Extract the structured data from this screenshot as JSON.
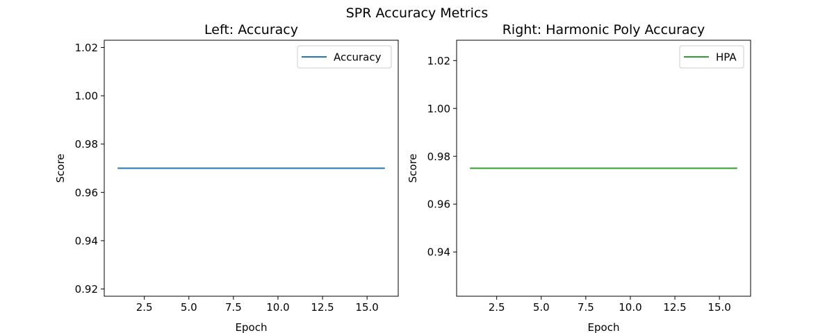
{
  "figure": {
    "suptitle": "SPR Accuracy Metrics"
  },
  "chart_data": [
    {
      "type": "line",
      "title": "Left: Accuracy",
      "xlabel": "Epoch",
      "ylabel": "Score",
      "xlim": [
        0.25,
        16.75
      ],
      "ylim": [
        0.917,
        1.023
      ],
      "xticks": [
        2.5,
        5.0,
        7.5,
        10.0,
        12.5,
        15.0
      ],
      "xtick_labels": [
        "2.5",
        "5.0",
        "7.5",
        "10.0",
        "12.5",
        "15.0"
      ],
      "yticks": [
        0.92,
        0.94,
        0.96,
        0.98,
        1.0,
        1.02
      ],
      "ytick_labels": [
        "0.92",
        "0.94",
        "0.96",
        "0.98",
        "1.00",
        "1.02"
      ],
      "grid": false,
      "legend_position": "top-right",
      "series": [
        {
          "name": "Accuracy",
          "color": "#1f77b4",
          "x": [
            1,
            16
          ],
          "y": [
            0.97,
            0.97
          ]
        }
      ]
    },
    {
      "type": "line",
      "title": "Right: Harmonic Poly Accuracy",
      "xlabel": "Epoch",
      "ylabel": "Score",
      "xlim": [
        0.25,
        16.75
      ],
      "ylim": [
        0.9215,
        1.0285
      ],
      "xticks": [
        2.5,
        5.0,
        7.5,
        10.0,
        12.5,
        15.0
      ],
      "xtick_labels": [
        "2.5",
        "5.0",
        "7.5",
        "10.0",
        "12.5",
        "15.0"
      ],
      "yticks": [
        0.94,
        0.96,
        0.98,
        1.0,
        1.02
      ],
      "ytick_labels": [
        "0.94",
        "0.96",
        "0.98",
        "1.00",
        "1.02"
      ],
      "grid": false,
      "legend_position": "top-right",
      "series": [
        {
          "name": "HPA",
          "color": "#2ca02c",
          "x": [
            1,
            16
          ],
          "y": [
            0.975,
            0.975
          ]
        }
      ]
    }
  ]
}
